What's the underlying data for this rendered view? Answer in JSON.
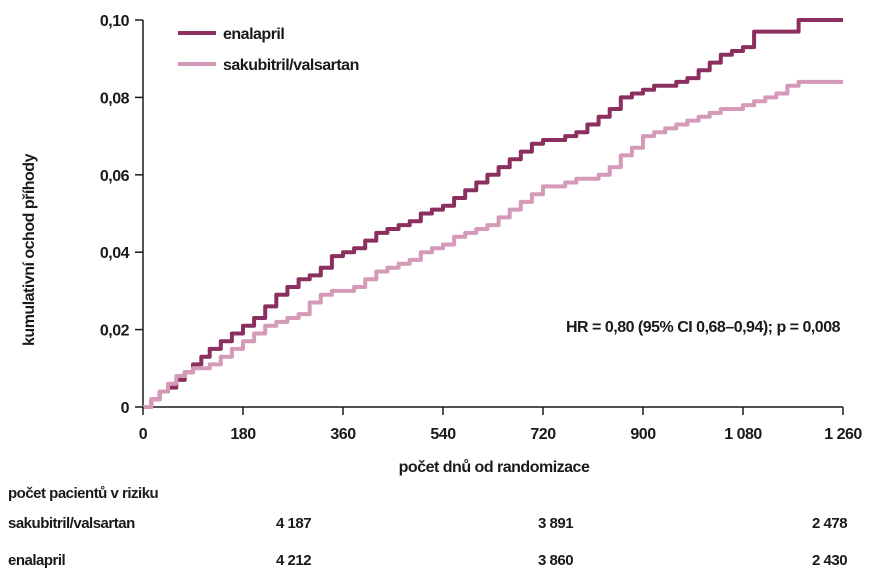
{
  "chart_data": {
    "type": "line",
    "ylabel": "kumulativní ochod příhody",
    "xlabel": "počet dnů od randomizace",
    "x_ticks": [
      0,
      180,
      360,
      540,
      720,
      900,
      1080,
      1260
    ],
    "x_tick_labels": [
      "0",
      "180",
      "360",
      "540",
      "720",
      "900",
      "1 080",
      "1 260"
    ],
    "y_ticks": [
      0,
      0.02,
      0.04,
      0.06,
      0.08,
      0.1
    ],
    "y_tick_labels": [
      "0",
      "0,02",
      "0,04",
      "0,06",
      "0,08",
      "0,10"
    ],
    "xlim": [
      0,
      1260
    ],
    "ylim": [
      0,
      0.1
    ],
    "legend_position": "top-left",
    "annotation": "HR = 0,80 (95% CI 0,68–0,94); p = 0,008",
    "series": [
      {
        "name": "enalapril",
        "color": "#8b2f5e",
        "points": [
          [
            0,
            0
          ],
          [
            15,
            0.002
          ],
          [
            30,
            0.004
          ],
          [
            45,
            0.005
          ],
          [
            60,
            0.007
          ],
          [
            75,
            0.009
          ],
          [
            90,
            0.011
          ],
          [
            105,
            0.013
          ],
          [
            120,
            0.015
          ],
          [
            140,
            0.017
          ],
          [
            160,
            0.019
          ],
          [
            180,
            0.021
          ],
          [
            200,
            0.023
          ],
          [
            220,
            0.026
          ],
          [
            240,
            0.029
          ],
          [
            260,
            0.031
          ],
          [
            280,
            0.033
          ],
          [
            300,
            0.034
          ],
          [
            320,
            0.036
          ],
          [
            340,
            0.039
          ],
          [
            360,
            0.04
          ],
          [
            380,
            0.041
          ],
          [
            400,
            0.043
          ],
          [
            420,
            0.045
          ],
          [
            440,
            0.046
          ],
          [
            460,
            0.047
          ],
          [
            480,
            0.048
          ],
          [
            500,
            0.05
          ],
          [
            520,
            0.051
          ],
          [
            540,
            0.052
          ],
          [
            560,
            0.054
          ],
          [
            580,
            0.056
          ],
          [
            600,
            0.058
          ],
          [
            620,
            0.06
          ],
          [
            640,
            0.062
          ],
          [
            660,
            0.064
          ],
          [
            680,
            0.066
          ],
          [
            700,
            0.068
          ],
          [
            720,
            0.069
          ],
          [
            740,
            0.069
          ],
          [
            760,
            0.07
          ],
          [
            780,
            0.071
          ],
          [
            800,
            0.073
          ],
          [
            820,
            0.075
          ],
          [
            840,
            0.077
          ],
          [
            860,
            0.08
          ],
          [
            880,
            0.081
          ],
          [
            900,
            0.082
          ],
          [
            920,
            0.083
          ],
          [
            940,
            0.083
          ],
          [
            960,
            0.084
          ],
          [
            980,
            0.085
          ],
          [
            1000,
            0.087
          ],
          [
            1020,
            0.089
          ],
          [
            1040,
            0.091
          ],
          [
            1060,
            0.092
          ],
          [
            1080,
            0.093
          ],
          [
            1100,
            0.097
          ],
          [
            1120,
            0.097
          ],
          [
            1140,
            0.097
          ],
          [
            1160,
            0.097
          ],
          [
            1180,
            0.1
          ],
          [
            1200,
            0.1
          ],
          [
            1230,
            0.1
          ],
          [
            1260,
            0.1
          ]
        ]
      },
      {
        "name": "sakubitril/valsartan",
        "color": "#d49ab8",
        "points": [
          [
            0,
            0
          ],
          [
            15,
            0.002
          ],
          [
            30,
            0.004
          ],
          [
            45,
            0.006
          ],
          [
            60,
            0.008
          ],
          [
            75,
            0.009
          ],
          [
            90,
            0.01
          ],
          [
            105,
            0.01
          ],
          [
            120,
            0.011
          ],
          [
            140,
            0.013
          ],
          [
            160,
            0.015
          ],
          [
            180,
            0.017
          ],
          [
            200,
            0.019
          ],
          [
            220,
            0.021
          ],
          [
            240,
            0.022
          ],
          [
            260,
            0.023
          ],
          [
            280,
            0.024
          ],
          [
            300,
            0.027
          ],
          [
            320,
            0.029
          ],
          [
            340,
            0.03
          ],
          [
            360,
            0.03
          ],
          [
            380,
            0.031
          ],
          [
            400,
            0.033
          ],
          [
            420,
            0.035
          ],
          [
            440,
            0.036
          ],
          [
            460,
            0.037
          ],
          [
            480,
            0.038
          ],
          [
            500,
            0.04
          ],
          [
            520,
            0.041
          ],
          [
            540,
            0.042
          ],
          [
            560,
            0.044
          ],
          [
            580,
            0.045
          ],
          [
            600,
            0.046
          ],
          [
            620,
            0.047
          ],
          [
            640,
            0.049
          ],
          [
            660,
            0.051
          ],
          [
            680,
            0.053
          ],
          [
            700,
            0.055
          ],
          [
            720,
            0.057
          ],
          [
            740,
            0.057
          ],
          [
            760,
            0.058
          ],
          [
            780,
            0.059
          ],
          [
            800,
            0.059
          ],
          [
            820,
            0.06
          ],
          [
            840,
            0.062
          ],
          [
            860,
            0.065
          ],
          [
            880,
            0.067
          ],
          [
            900,
            0.07
          ],
          [
            920,
            0.071
          ],
          [
            940,
            0.072
          ],
          [
            960,
            0.073
          ],
          [
            980,
            0.074
          ],
          [
            1000,
            0.075
          ],
          [
            1020,
            0.076
          ],
          [
            1040,
            0.077
          ],
          [
            1060,
            0.077
          ],
          [
            1080,
            0.078
          ],
          [
            1100,
            0.079
          ],
          [
            1120,
            0.08
          ],
          [
            1140,
            0.081
          ],
          [
            1160,
            0.083
          ],
          [
            1180,
            0.084
          ],
          [
            1200,
            0.084
          ],
          [
            1230,
            0.084
          ],
          [
            1260,
            0.084
          ]
        ]
      }
    ]
  },
  "risk_table": {
    "title": "počet pacientů v riziku",
    "rows": [
      {
        "label": "sakubitril/valsartan",
        "values": [
          "4 187",
          "3 891",
          "2 478"
        ]
      },
      {
        "label": "enalapril",
        "values": [
          "4 212",
          "3 860",
          "2 430"
        ]
      }
    ]
  }
}
